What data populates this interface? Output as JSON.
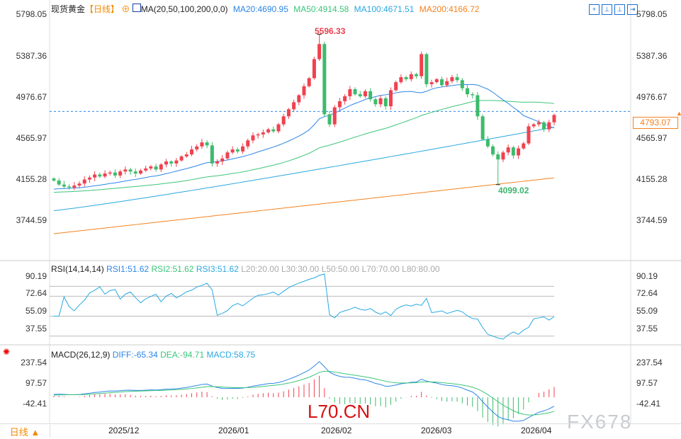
{
  "header": {
    "title": "现货黄金",
    "period": "【日线】",
    "ma_label": "MA(20,50,100,200,0,0)",
    "ma20": "MA20:4690.95",
    "ma50": "MA50:4914.58",
    "ma100": "MA100:4671.51",
    "ma200": "MA200:4166.72"
  },
  "rsi_header": {
    "label": "RSI(14,14,14)",
    "rsi1": "RSI1:51.62",
    "rsi2": "RSI2:51.62",
    "rsi3": "RSI3:51.62",
    "l20": "L20:20.00",
    "l30": "L30:30.00",
    "l50": "L50:50.00",
    "l70": "L70:70.00",
    "l80": "L80:80.00"
  },
  "macd_header": {
    "label": "MACD(26,12,9)",
    "diff": "DIFF:-65.34",
    "dea": "DEA:-94.71",
    "macd": "MACD:58.75"
  },
  "price_axis": [
    "5798.05",
    "5387.36",
    "4976.67",
    "4565.97",
    "4155.28",
    "3744.59"
  ],
  "rsi_axis": [
    "90.19",
    "72.64",
    "55.09",
    "37.55"
  ],
  "macd_axis": [
    "237.54",
    "97.57",
    "-42.41"
  ],
  "time_axis": [
    "2025/12",
    "2026/01",
    "2026/02",
    "2026/03",
    "2026/04"
  ],
  "current_price": "4793.07",
  "high_label": "5596.33",
  "low_label": "4099.02",
  "period_button": "日线 ▲",
  "watermarks": {
    "red": "L70.CN",
    "grey": "FX678"
  },
  "colors": {
    "up": "#f0414f",
    "down": "#3dbb6b",
    "ma20": "#2b86e8",
    "ma50": "#3cc57a",
    "ma100": "#2aa8e0",
    "ma200": "#f58220",
    "rsi": "#27a9e1"
  },
  "chart_data": {
    "type": "candlestick",
    "title": "现货黄金 日线",
    "ylim": [
      3744.59,
      5798.05
    ],
    "high": 5596.33,
    "low": 4099.02,
    "closes": [
      4140,
      4100,
      4080,
      4070,
      4090,
      4110,
      4150,
      4170,
      4200,
      4180,
      4210,
      4220,
      4190,
      4230,
      4250,
      4230,
      4210,
      4240,
      4260,
      4280,
      4250,
      4300,
      4330,
      4310,
      4340,
      4380,
      4400,
      4450,
      4480,
      4520,
      4490,
      4310,
      4330,
      4360,
      4420,
      4450,
      4430,
      4480,
      4540,
      4590,
      4600,
      4620,
      4650,
      4630,
      4700,
      4780,
      4850,
      4920,
      4990,
      5080,
      5160,
      5350,
      5500,
      4800,
      4700,
      4870,
      4930,
      4980,
      5050,
      5000,
      4980,
      5030,
      4950,
      4900,
      4960,
      4880,
      5040,
      5120,
      5170,
      5150,
      5200,
      5180,
      5400,
      5100,
      5120,
      5150,
      5090,
      5130,
      5170,
      5140,
      5060,
      5000,
      4990,
      4780,
      4550,
      4480,
      4400,
      4350,
      4420,
      4470,
      4390,
      4460,
      4510,
      4680,
      4700,
      4720,
      4650,
      4720,
      4793.07
    ]
  }
}
